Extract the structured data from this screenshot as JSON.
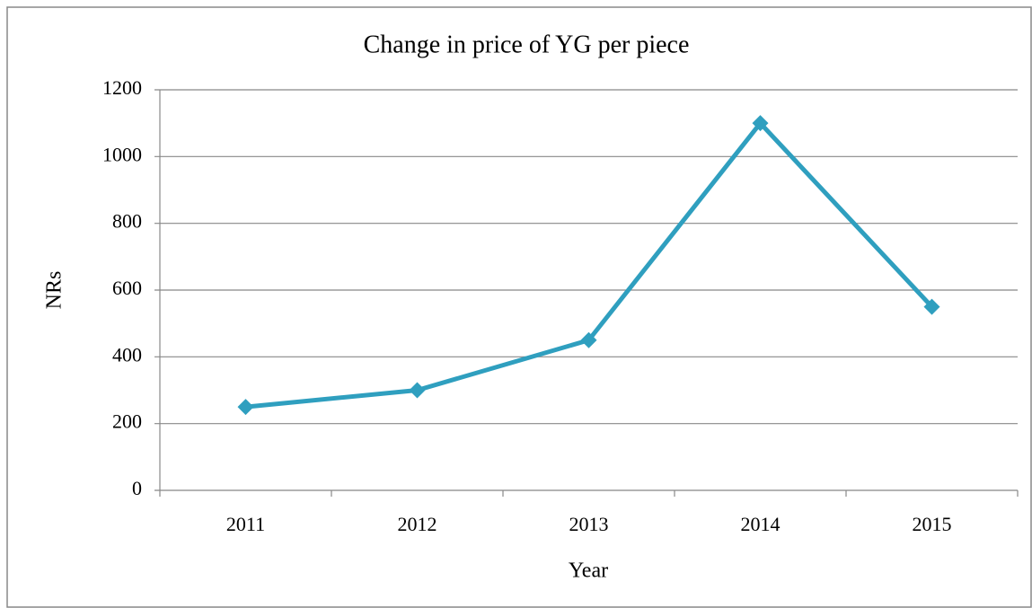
{
  "chart_data": {
    "type": "line",
    "title": "Change in price of YG per piece",
    "x_label": "Year",
    "y_label": "NRs",
    "categories": [
      "2011",
      "2012",
      "2013",
      "2014",
      "2015"
    ],
    "values": [
      250,
      300,
      450,
      1100,
      550
    ],
    "color": "#2f9fbf",
    "ylim": [
      0,
      1200
    ],
    "yticks": [
      0,
      200,
      400,
      600,
      800,
      1000,
      1200
    ],
    "grid": true
  }
}
